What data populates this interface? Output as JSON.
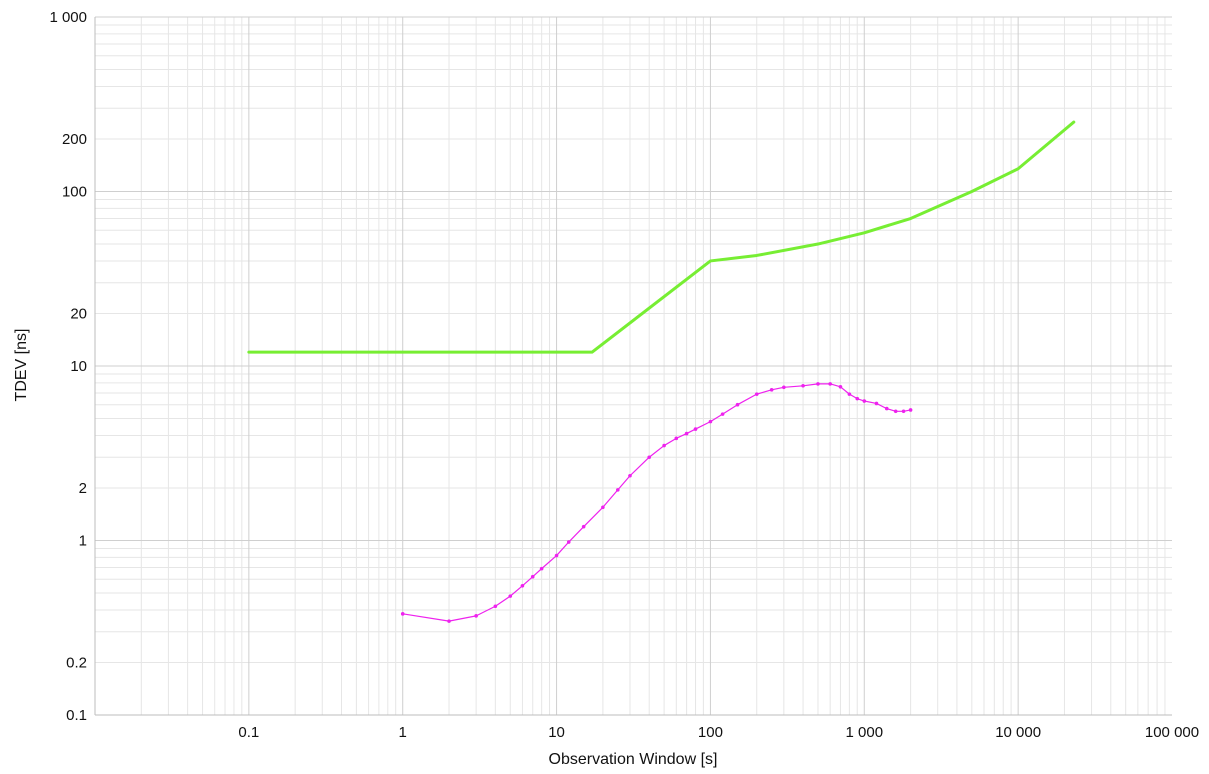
{
  "chart_data": {
    "type": "line",
    "xlabel": "Observation Window [s]",
    "ylabel": "TDEV [ns]",
    "x_scale": "log",
    "y_scale": "log",
    "xlim": [
      0.01,
      100000
    ],
    "ylim": [
      0.1,
      1000
    ],
    "grid": true,
    "x_ticks": [
      {
        "value": 0.1,
        "label": "0.1"
      },
      {
        "value": 1,
        "label": "1"
      },
      {
        "value": 10,
        "label": "10"
      },
      {
        "value": 100,
        "label": "100"
      },
      {
        "value": 1000,
        "label": "1 000"
      },
      {
        "value": 10000,
        "label": "10 000"
      },
      {
        "value": 100000,
        "label": "100 000"
      }
    ],
    "y_ticks": [
      {
        "value": 0.1,
        "label": "0.1"
      },
      {
        "value": 0.2,
        "label": "0.2"
      },
      {
        "value": 1,
        "label": "1"
      },
      {
        "value": 2,
        "label": "2"
      },
      {
        "value": 10,
        "label": "10"
      },
      {
        "value": 20,
        "label": "20"
      },
      {
        "value": 100,
        "label": "100"
      },
      {
        "value": 200,
        "label": "200"
      },
      {
        "value": 1000,
        "label": "1 000"
      }
    ],
    "series": [
      {
        "color": "#77ee33",
        "line_width": 3,
        "markers": false,
        "points": [
          [
            0.1,
            12
          ],
          [
            17,
            12
          ],
          [
            100,
            40
          ],
          [
            200,
            43
          ],
          [
            500,
            50
          ],
          [
            1000,
            58
          ],
          [
            2000,
            70
          ],
          [
            5000,
            100
          ],
          [
            10000,
            135
          ],
          [
            23000,
            250
          ]
        ]
      },
      {
        "color": "#ee22ee",
        "line_width": 1.2,
        "markers": true,
        "points": [
          [
            1,
            0.38
          ],
          [
            2,
            0.345
          ],
          [
            3,
            0.37
          ],
          [
            4,
            0.42
          ],
          [
            5,
            0.48
          ],
          [
            6,
            0.55
          ],
          [
            7,
            0.62
          ],
          [
            8,
            0.69
          ],
          [
            10,
            0.82
          ],
          [
            12,
            0.98
          ],
          [
            15,
            1.2
          ],
          [
            20,
            1.55
          ],
          [
            25,
            1.95
          ],
          [
            30,
            2.35
          ],
          [
            40,
            3.0
          ],
          [
            50,
            3.5
          ],
          [
            60,
            3.85
          ],
          [
            70,
            4.1
          ],
          [
            80,
            4.35
          ],
          [
            100,
            4.8
          ],
          [
            120,
            5.3
          ],
          [
            150,
            6.0
          ],
          [
            200,
            6.9
          ],
          [
            250,
            7.3
          ],
          [
            300,
            7.55
          ],
          [
            400,
            7.7
          ],
          [
            500,
            7.9
          ],
          [
            600,
            7.9
          ],
          [
            700,
            7.6
          ],
          [
            800,
            6.9
          ],
          [
            900,
            6.5
          ],
          [
            1000,
            6.3
          ],
          [
            1200,
            6.1
          ],
          [
            1400,
            5.7
          ],
          [
            1600,
            5.5
          ],
          [
            1800,
            5.5
          ],
          [
            2000,
            5.6
          ]
        ]
      }
    ]
  }
}
